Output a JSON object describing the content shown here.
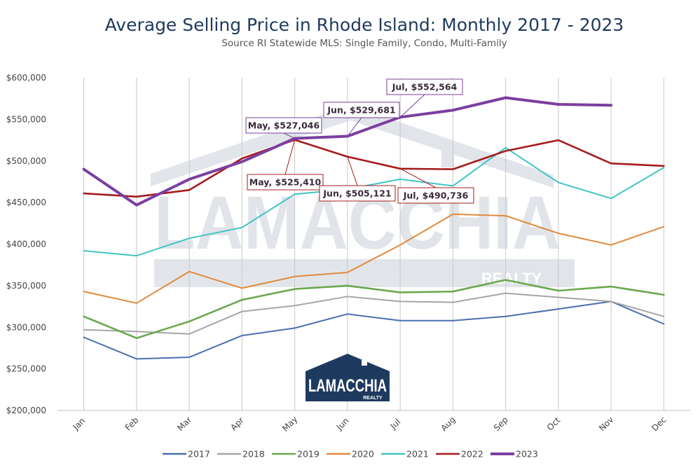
{
  "chart_data": {
    "type": "line",
    "title": "Average Selling Price in Rhode Island: Monthly 2017 - 2023",
    "subtitle": "Source RI Statewide MLS: Single Family, Condo, Multi-Family",
    "categories": [
      "Jan",
      "Feb",
      "Mar",
      "Apr",
      "May",
      "Jun",
      "Jul",
      "Aug",
      "Sep",
      "Oct",
      "Nov",
      "Dec"
    ],
    "ylim": [
      200000,
      600000
    ],
    "yticks": [
      {
        "value": 200000,
        "label": "$200,000"
      },
      {
        "value": 250000,
        "label": "$250,000"
      },
      {
        "value": 300000,
        "label": "$300,000"
      },
      {
        "value": 350000,
        "label": "$350,000"
      },
      {
        "value": 400000,
        "label": "$400,000"
      },
      {
        "value": 450000,
        "label": "$450,000"
      },
      {
        "value": 500000,
        "label": "$500,000"
      },
      {
        "value": 550000,
        "label": "$550,000"
      },
      {
        "value": 600000,
        "label": "$600,000"
      }
    ],
    "grid": "vertical",
    "legend": "bottom",
    "series": [
      {
        "name": "2017",
        "color": "#4a6faf",
        "values": [
          288000,
          262000,
          264000,
          290000,
          299000,
          316000,
          308000,
          308000,
          313000,
          322000,
          331000,
          304000
        ]
      },
      {
        "name": "2018",
        "color": "#a6a6a6",
        "values": [
          297000,
          295000,
          292000,
          319000,
          326000,
          337000,
          331000,
          330000,
          341000,
          336000,
          331000,
          313000
        ]
      },
      {
        "name": "2019",
        "color": "#6aa84f",
        "values": [
          313000,
          287000,
          307000,
          333000,
          346000,
          350000,
          342000,
          343000,
          357000,
          344000,
          349000,
          339000
        ]
      },
      {
        "name": "2020",
        "color": "#e08a3c",
        "values": [
          343000,
          329000,
          367000,
          347000,
          361000,
          366000,
          399000,
          436000,
          434000,
          413000,
          399000,
          421000
        ]
      },
      {
        "name": "2021",
        "color": "#40c4c4",
        "values": [
          392000,
          386000,
          407000,
          420000,
          460000,
          466000,
          478000,
          470000,
          516000,
          474000,
          455000,
          492000
        ]
      },
      {
        "name": "2022",
        "color": "#a51c1c",
        "values": [
          461000,
          457000,
          465000,
          503000,
          525410,
          505121,
          490736,
          490000,
          512000,
          525000,
          497000,
          494000
        ]
      },
      {
        "name": "2023",
        "color": "#7b3fa0",
        "values": [
          490000,
          447000,
          478000,
          499000,
          527046,
          529681,
          552564,
          561000,
          576000,
          568000,
          567000,
          null
        ]
      }
    ],
    "annotations": [
      {
        "series": "2023",
        "month": "May",
        "text": "May, $527,046"
      },
      {
        "series": "2023",
        "month": "Jun",
        "text": "Jun, $529,681"
      },
      {
        "series": "2023",
        "month": "Jul",
        "text": "Jul, $552,564"
      },
      {
        "series": "2022",
        "month": "May",
        "text": "May, $525,410"
      },
      {
        "series": "2022",
        "month": "Jun",
        "text": "Jun, $505,121"
      },
      {
        "series": "2022",
        "month": "Jul",
        "text": "Jul, $490,736"
      }
    ]
  },
  "logo": {
    "brand": "LAMACCHIA",
    "sub": "REALTY",
    "background": "#1f3a5f"
  }
}
